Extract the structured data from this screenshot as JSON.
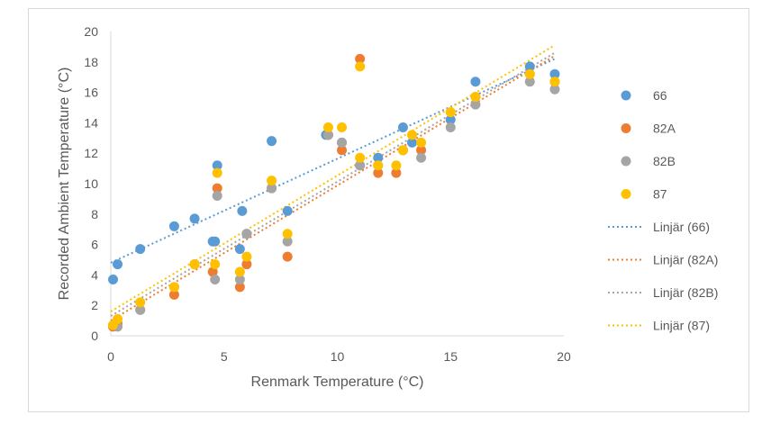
{
  "chart_data": {
    "type": "scatter",
    "title": "",
    "xlabel": "Renmark Temperature (°C)",
    "ylabel": "Recorded Ambient Temperature (°C)",
    "xlim": [
      0,
      20
    ],
    "ylim": [
      0,
      20
    ],
    "x_ticks": [
      "0",
      "5",
      "10",
      "15",
      "20"
    ],
    "y_ticks": [
      "0",
      "2",
      "4",
      "6",
      "8",
      "10",
      "12",
      "14",
      "16",
      "18",
      "20"
    ],
    "grid": false,
    "legend_position": "right",
    "series": [
      {
        "name": "66",
        "color": "#5b9bd5",
        "points": [
          [
            0.1,
            3.7
          ],
          [
            0.3,
            4.7
          ],
          [
            1.3,
            5.7
          ],
          [
            2.8,
            7.2
          ],
          [
            3.7,
            7.7
          ],
          [
            4.5,
            6.2
          ],
          [
            4.6,
            6.2
          ],
          [
            4.7,
            11.2
          ],
          [
            5.7,
            5.7
          ],
          [
            5.8,
            8.2
          ],
          [
            6.0,
            6.7
          ],
          [
            7.1,
            12.8
          ],
          [
            7.8,
            8.2
          ],
          [
            9.5,
            13.2
          ],
          [
            10.2,
            12.7
          ],
          [
            11.0,
            11.2
          ],
          [
            11.8,
            11.7
          ],
          [
            12.9,
            13.7
          ],
          [
            13.3,
            12.7
          ],
          [
            15.0,
            14.2
          ],
          [
            16.1,
            16.7
          ],
          [
            18.5,
            17.7
          ],
          [
            19.6,
            17.2
          ]
        ]
      },
      {
        "name": "82A",
        "color": "#ed7d31",
        "points": [
          [
            0.1,
            0.6
          ],
          [
            0.3,
            0.8
          ],
          [
            1.3,
            1.7
          ],
          [
            2.8,
            2.7
          ],
          [
            3.7,
            4.7
          ],
          [
            4.5,
            4.2
          ],
          [
            4.7,
            9.7
          ],
          [
            5.7,
            3.2
          ],
          [
            6.0,
            4.7
          ],
          [
            7.1,
            9.7
          ],
          [
            7.8,
            5.2
          ],
          [
            9.6,
            13.2
          ],
          [
            10.2,
            12.2
          ],
          [
            11.0,
            18.2
          ],
          [
            11.8,
            10.7
          ],
          [
            12.6,
            10.7
          ],
          [
            12.9,
            12.2
          ],
          [
            13.7,
            12.2
          ],
          [
            16.1,
            15.7
          ],
          [
            18.5,
            17.2
          ],
          [
            19.6,
            16.7
          ]
        ]
      },
      {
        "name": "82B",
        "color": "#a5a5a5",
        "points": [
          [
            0.1,
            0.7
          ],
          [
            0.3,
            0.6
          ],
          [
            1.3,
            1.7
          ],
          [
            2.8,
            3.2
          ],
          [
            3.7,
            4.7
          ],
          [
            4.6,
            3.7
          ],
          [
            4.7,
            9.2
          ],
          [
            5.7,
            3.7
          ],
          [
            6.0,
            6.7
          ],
          [
            7.1,
            9.7
          ],
          [
            7.8,
            6.2
          ],
          [
            9.6,
            13.2
          ],
          [
            10.2,
            12.7
          ],
          [
            11.0,
            11.2
          ],
          [
            11.8,
            11.2
          ],
          [
            12.9,
            12.2
          ],
          [
            13.7,
            11.7
          ],
          [
            15.0,
            13.7
          ],
          [
            16.1,
            15.2
          ],
          [
            18.5,
            16.7
          ],
          [
            19.6,
            16.2
          ]
        ]
      },
      {
        "name": "87",
        "color": "#ffc000",
        "points": [
          [
            0.1,
            0.7
          ],
          [
            0.3,
            1.1
          ],
          [
            1.3,
            2.2
          ],
          [
            2.8,
            3.2
          ],
          [
            3.7,
            4.7
          ],
          [
            4.6,
            4.7
          ],
          [
            4.7,
            10.7
          ],
          [
            5.7,
            4.2
          ],
          [
            6.0,
            5.2
          ],
          [
            7.1,
            10.2
          ],
          [
            7.8,
            6.7
          ],
          [
            9.6,
            13.7
          ],
          [
            10.2,
            13.7
          ],
          [
            11.0,
            17.7
          ],
          [
            11.0,
            11.7
          ],
          [
            11.8,
            11.2
          ],
          [
            12.6,
            11.2
          ],
          [
            12.9,
            12.2
          ],
          [
            13.3,
            13.2
          ],
          [
            13.7,
            12.7
          ],
          [
            15.0,
            14.7
          ],
          [
            16.1,
            15.7
          ],
          [
            18.5,
            17.2
          ],
          [
            19.6,
            16.7
          ]
        ]
      }
    ],
    "trendlines": [
      {
        "name": "Linjär (66)",
        "color": "#5b9bd5",
        "style": "dotted",
        "y_at_x0": 4.8,
        "y_at_x_end": 18.2,
        "x_range": [
          0,
          19.6
        ]
      },
      {
        "name": "Linjär (82A)",
        "color": "#ed7d31",
        "style": "dotted",
        "y_at_x0": 1.0,
        "y_at_x_end": 18.4,
        "x_range": [
          0,
          19.6
        ]
      },
      {
        "name": "Linjär (82B)",
        "color": "#a5a5a5",
        "style": "dotted",
        "y_at_x0": 1.3,
        "y_at_x_end": 18.6,
        "x_range": [
          0,
          19.6
        ]
      },
      {
        "name": "Linjär (87)",
        "color": "#ffc000",
        "style": "dotted",
        "y_at_x0": 1.6,
        "y_at_x_end": 19.1,
        "x_range": [
          0,
          19.6
        ]
      }
    ]
  }
}
